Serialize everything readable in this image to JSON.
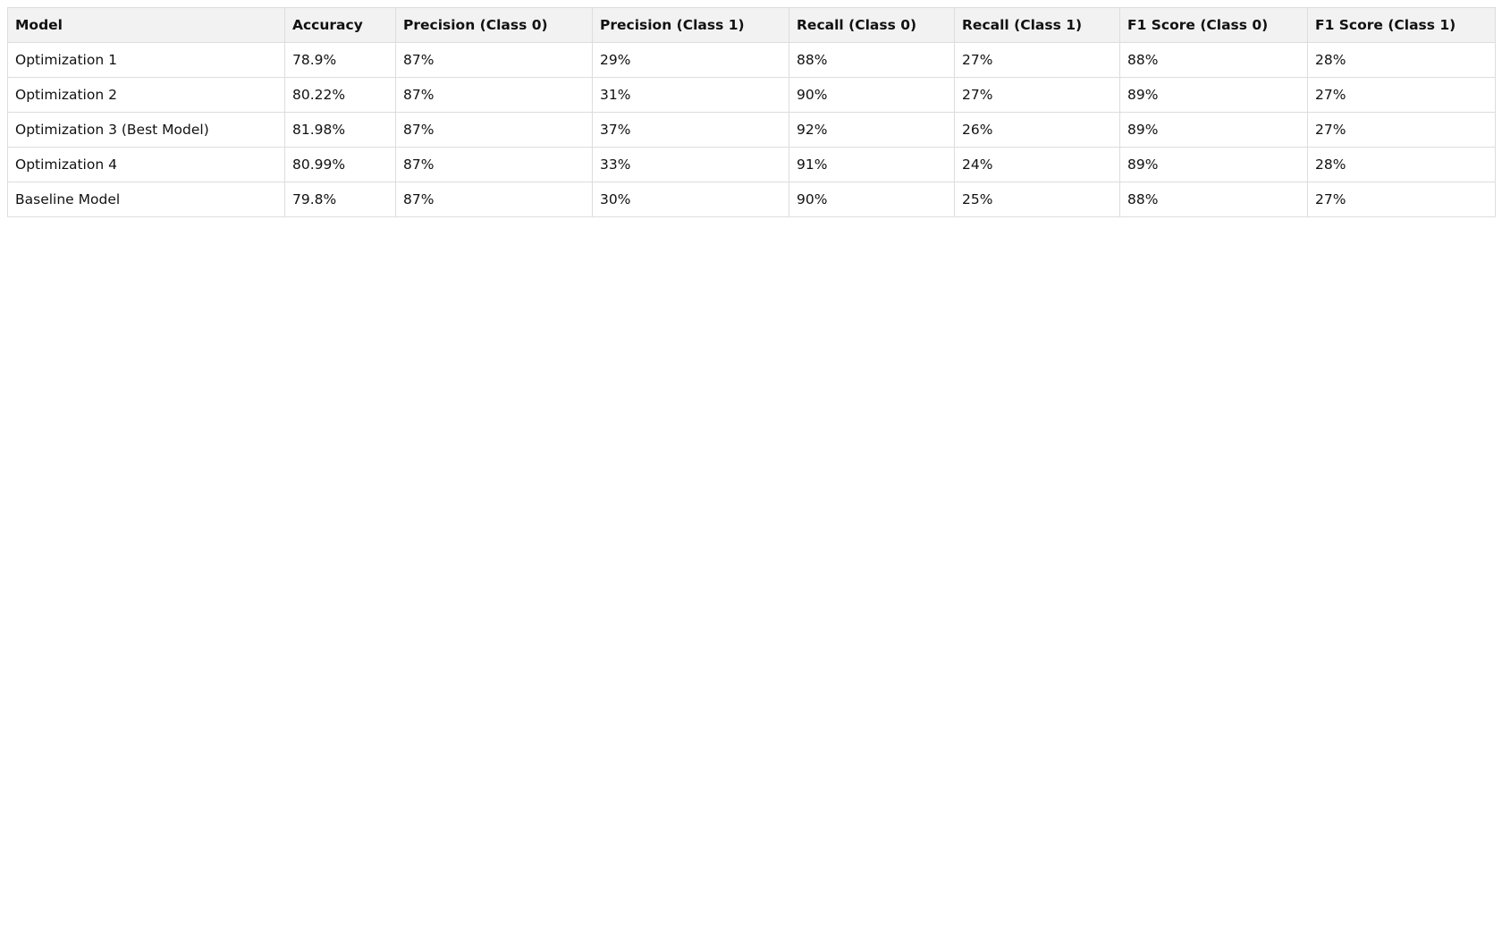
{
  "table": {
    "headers": [
      "Model",
      "Accuracy",
      "Precision (Class 0)",
      "Precision (Class 1)",
      "Recall (Class 0)",
      "Recall (Class 1)",
      "F1 Score (Class 0)",
      "F1 Score (Class 1)"
    ],
    "rows": [
      [
        "Optimization 1",
        "78.9%",
        "87%",
        "29%",
        "88%",
        "27%",
        "88%",
        "28%"
      ],
      [
        "Optimization 2",
        "80.22%",
        "87%",
        "31%",
        "90%",
        "27%",
        "89%",
        "27%"
      ],
      [
        "Optimization 3 (Best Model)",
        "81.98%",
        "87%",
        "37%",
        "92%",
        "26%",
        "89%",
        "27%"
      ],
      [
        "Optimization 4",
        "80.99%",
        "87%",
        "33%",
        "91%",
        "24%",
        "89%",
        "28%"
      ],
      [
        "Baseline Model",
        "79.8%",
        "87%",
        "30%",
        "90%",
        "25%",
        "88%",
        "27%"
      ]
    ]
  },
  "colors": {
    "header_bg": "#f2f2f2",
    "border": "#dddddd",
    "text": "#111111"
  }
}
